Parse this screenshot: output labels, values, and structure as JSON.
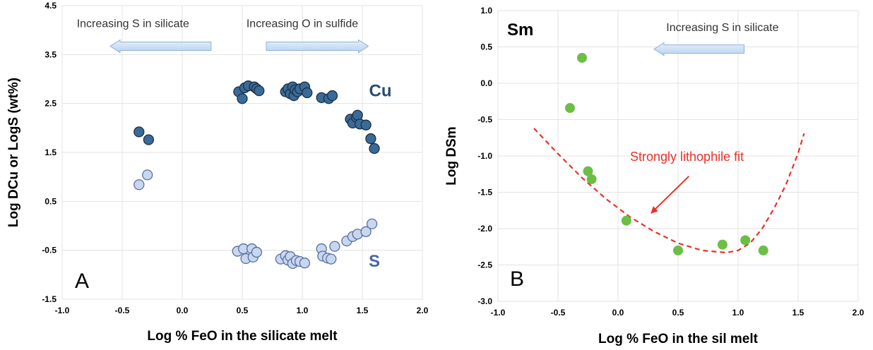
{
  "chart_data": [
    {
      "type": "scatter",
      "panel_label": "A",
      "xlabel": "Log % FeO in the silicate melt",
      "ylabel": "Log DCu or LogS (wt%)",
      "xlim": [
        -1.0,
        2.0
      ],
      "ylim": [
        -1.5,
        4.5
      ],
      "xticks": [
        "-1.0",
        "-0.5",
        "0.0",
        "0.5",
        "1.0",
        "1.5",
        "2.0"
      ],
      "yticks": [
        "-1.5",
        "-0.5",
        "0.5",
        "1.5",
        "2.5",
        "3.5",
        "4.5"
      ],
      "grid": true,
      "series": [
        {
          "name": "Cu",
          "color": "#3a6b98",
          "points": [
            [
              -0.36,
              1.92
            ],
            [
              -0.28,
              1.76
            ],
            [
              0.47,
              2.74
            ],
            [
              0.5,
              2.6
            ],
            [
              0.52,
              2.82
            ],
            [
              0.55,
              2.86
            ],
            [
              0.6,
              2.84
            ],
            [
              0.62,
              2.8
            ],
            [
              0.64,
              2.76
            ],
            [
              0.86,
              2.74
            ],
            [
              0.88,
              2.8
            ],
            [
              0.9,
              2.7
            ],
            [
              0.92,
              2.84
            ],
            [
              0.93,
              2.66
            ],
            [
              0.94,
              2.78
            ],
            [
              0.96,
              2.74
            ],
            [
              0.98,
              2.8
            ],
            [
              1.02,
              2.84
            ],
            [
              1.04,
              2.72
            ],
            [
              1.16,
              2.62
            ],
            [
              1.22,
              2.6
            ],
            [
              1.25,
              2.66
            ],
            [
              1.4,
              2.18
            ],
            [
              1.42,
              2.1
            ],
            [
              1.45,
              2.22
            ],
            [
              1.46,
              2.26
            ],
            [
              1.48,
              2.08
            ],
            [
              1.53,
              2.06
            ],
            [
              1.57,
              1.78
            ],
            [
              1.6,
              1.58
            ]
          ]
        },
        {
          "name": "S",
          "color": "#c6d7ef",
          "points": [
            [
              -0.36,
              0.84
            ],
            [
              -0.29,
              1.04
            ],
            [
              0.46,
              -0.52
            ],
            [
              0.51,
              -0.47
            ],
            [
              0.53,
              -0.67
            ],
            [
              0.58,
              -0.47
            ],
            [
              0.59,
              -0.64
            ],
            [
              0.62,
              -0.54
            ],
            [
              0.82,
              -0.68
            ],
            [
              0.86,
              -0.61
            ],
            [
              0.88,
              -0.7
            ],
            [
              0.9,
              -0.63
            ],
            [
              0.92,
              -0.77
            ],
            [
              0.95,
              -0.71
            ],
            [
              0.98,
              -0.73
            ],
            [
              1.02,
              -0.76
            ],
            [
              1.16,
              -0.47
            ],
            [
              1.17,
              -0.62
            ],
            [
              1.21,
              -0.66
            ],
            [
              1.24,
              -0.68
            ],
            [
              1.27,
              -0.42
            ],
            [
              1.37,
              -0.31
            ],
            [
              1.42,
              -0.22
            ],
            [
              1.46,
              -0.17
            ],
            [
              1.53,
              -0.12
            ],
            [
              1.58,
              0.04
            ]
          ]
        }
      ],
      "series_labels": [
        {
          "text": "Cu",
          "x": 1.65,
          "y": 2.65,
          "color": "#264d73"
        },
        {
          "text": "S",
          "x": 1.6,
          "y": -0.84,
          "color": "#4a64a8"
        }
      ],
      "annotations": [
        {
          "text": "Increasing S in silicate",
          "direction": "left",
          "x": -0.41,
          "y": 4.06,
          "arrow_from": 0.24,
          "arrow_to": -0.6,
          "arrow_y": 3.67
        },
        {
          "text": "Increasing O in sulfide",
          "direction": "right",
          "x": 1.0,
          "y": 4.06,
          "arrow_from": 0.7,
          "arrow_to": 1.55,
          "arrow_y": 3.67
        }
      ]
    },
    {
      "type": "scatter",
      "panel_label": "B",
      "title": "Sm",
      "xlabel": "Log % FeO in the sil melt",
      "ylabel": "Log DSm",
      "xlim": [
        -1.0,
        2.0
      ],
      "ylim": [
        -3.0,
        1.0
      ],
      "xticks": [
        "-1.0",
        "-0.5",
        "0.0",
        "0.5",
        "1.0",
        "1.5",
        "2.0"
      ],
      "yticks": [
        "-3.0",
        "-2.5",
        "-2.0",
        "-1.5",
        "-1.0",
        "-0.5",
        "0.0",
        "0.5",
        "1.0"
      ],
      "grid": true,
      "series": [
        {
          "name": "Sm",
          "color": "#6cbe45",
          "points": [
            [
              -0.3,
              0.35
            ],
            [
              -0.4,
              -0.34
            ],
            [
              -0.25,
              -1.21
            ],
            [
              -0.22,
              -1.32
            ],
            [
              0.07,
              -1.89
            ],
            [
              0.5,
              -2.3
            ],
            [
              0.87,
              -2.22
            ],
            [
              1.06,
              -2.16
            ],
            [
              1.21,
              -2.3
            ]
          ]
        }
      ],
      "fit": {
        "label": "Strongly lithophile fit",
        "color": "#e8322a",
        "points": [
          [
            -0.7,
            -0.62
          ],
          [
            -0.5,
            -0.97
          ],
          [
            -0.3,
            -1.3
          ],
          [
            -0.1,
            -1.59
          ],
          [
            0.1,
            -1.84
          ],
          [
            0.3,
            -2.04
          ],
          [
            0.5,
            -2.2
          ],
          [
            0.7,
            -2.3
          ],
          [
            0.9,
            -2.33
          ],
          [
            1.0,
            -2.3
          ],
          [
            1.1,
            -2.2
          ],
          [
            1.2,
            -2.0
          ],
          [
            1.3,
            -1.72
          ],
          [
            1.4,
            -1.39
          ],
          [
            1.5,
            -0.96
          ],
          [
            1.55,
            -0.69
          ]
        ],
        "label_x": 0.1,
        "label_y": -1.07,
        "arrow_from": [
          0.59,
          -1.28
        ],
        "arrow_to": [
          0.28,
          -1.78
        ]
      },
      "annotations": [
        {
          "text": "Increasing S in silicate",
          "direction": "left",
          "x": 0.87,
          "y": 0.72,
          "arrow_from": 1.05,
          "arrow_to": 0.3,
          "arrow_y": 0.47
        }
      ]
    }
  ]
}
